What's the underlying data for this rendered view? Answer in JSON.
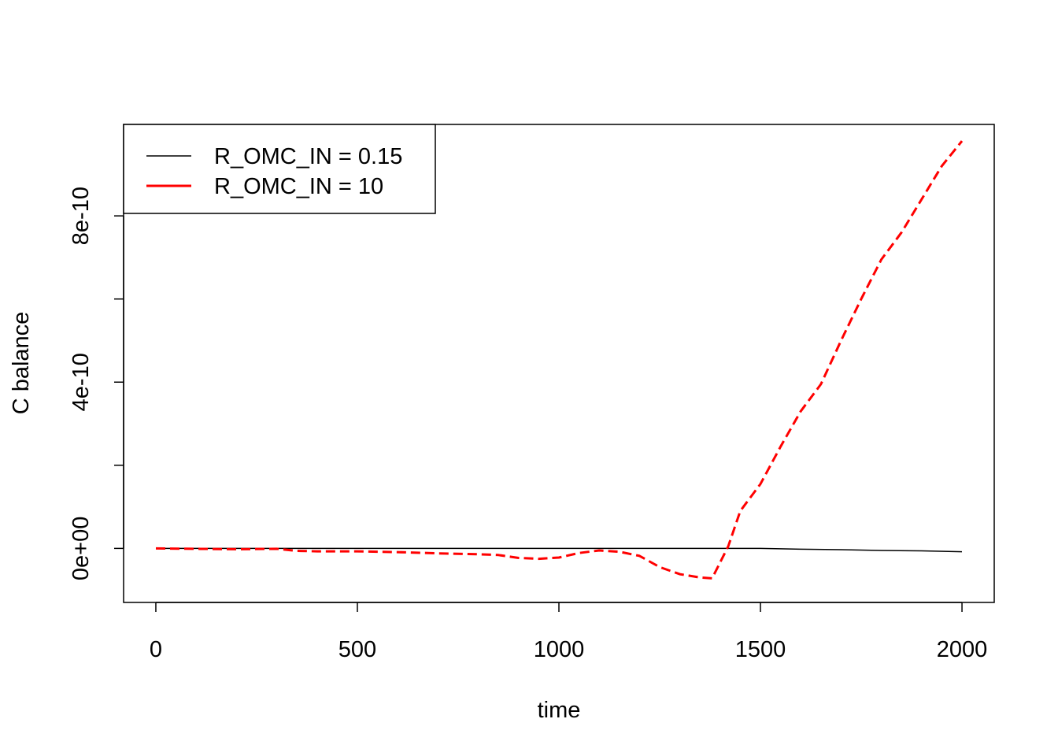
{
  "chart_data": {
    "type": "line",
    "title": "",
    "xlabel": "time",
    "ylabel": "C balance",
    "xlim": [
      -80,
      2080
    ],
    "ylim": [
      -1.3e-10,
      1.02e-09
    ],
    "x_ticks": [
      0,
      500,
      1000,
      1500,
      2000
    ],
    "x_tick_labels": [
      "0",
      "500",
      "1000",
      "1500",
      "2000"
    ],
    "y_ticks": [
      0,
      2e-10,
      4e-10,
      6e-10,
      8e-10
    ],
    "y_tick_labels": [
      "0e+00",
      "",
      "4e-10",
      "",
      "8e-10"
    ],
    "grid": false,
    "legend_position": "top-left",
    "series": [
      {
        "name": "R_OMC_IN = 0.15",
        "color": "#000000",
        "line_style": "solid",
        "x": [
          0,
          250,
          500,
          750,
          1000,
          1250,
          1500,
          1550,
          1600,
          1700,
          1750,
          1800,
          1900,
          2000
        ],
        "y": [
          0,
          0,
          0,
          0,
          0,
          0,
          0,
          -1e-12,
          -2e-12,
          -3e-12,
          -4e-12,
          -5e-12,
          -6e-12,
          -8e-12
        ]
      },
      {
        "name": "R_OMC_IN = 10",
        "color": "#ff0000",
        "line_style": "dashed",
        "x": [
          0,
          100,
          200,
          300,
          350,
          400,
          500,
          600,
          700,
          800,
          850,
          900,
          950,
          1000,
          1050,
          1100,
          1150,
          1200,
          1250,
          1300,
          1350,
          1380,
          1420,
          1450,
          1500,
          1550,
          1600,
          1650,
          1700,
          1750,
          1800,
          1850,
          1900,
          1950,
          2000
        ],
        "y": [
          0,
          -1e-12,
          -2e-12,
          -1e-12,
          -6e-12,
          -7e-12,
          -7e-12,
          -9e-12,
          -1.2e-11,
          -1.4e-11,
          -1.6e-11,
          -2.3e-11,
          -2.5e-11,
          -2.2e-11,
          -1.1e-11,
          -5e-12,
          -8e-12,
          -1.8e-11,
          -4.5e-11,
          -6.2e-11,
          -7e-11,
          -7.2e-11,
          5e-12,
          9e-11,
          1.55e-10,
          2.45e-10,
          3.3e-10,
          3.95e-10,
          5e-10,
          6e-10,
          6.95e-10,
          7.6e-10,
          8.4e-10,
          9.2e-10,
          9.8e-10
        ]
      }
    ]
  }
}
